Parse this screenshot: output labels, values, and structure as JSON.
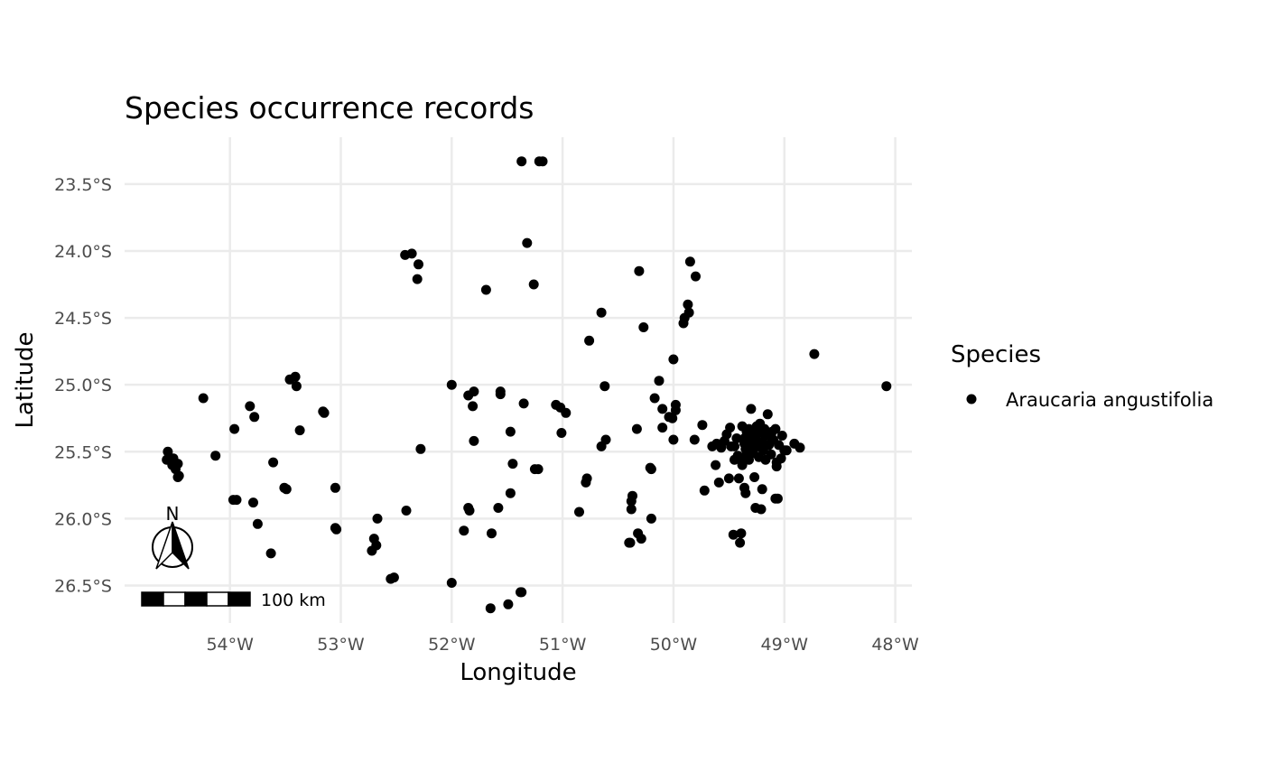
{
  "chart_data": {
    "type": "scatter",
    "title": "Species occurrence records",
    "xlabel": "Longitude",
    "ylabel": "Latitude",
    "xlim": [
      -54.95,
      -47.85
    ],
    "ylim": [
      -26.78,
      -23.15
    ],
    "x_ticks": [
      {
        "value": -54,
        "label": "54°W"
      },
      {
        "value": -53,
        "label": "53°W"
      },
      {
        "value": -52,
        "label": "52°W"
      },
      {
        "value": -51,
        "label": "51°W"
      },
      {
        "value": -50,
        "label": "50°W"
      },
      {
        "value": -49,
        "label": "49°W"
      },
      {
        "value": -48,
        "label": "48°W"
      }
    ],
    "y_ticks": [
      {
        "value": -23.5,
        "label": "23.5°S"
      },
      {
        "value": -24.0,
        "label": "24.0°S"
      },
      {
        "value": -24.5,
        "label": "24.5°S"
      },
      {
        "value": -25.0,
        "label": "25.0°S"
      },
      {
        "value": -25.5,
        "label": "25.5°S"
      },
      {
        "value": -26.0,
        "label": "26.0°S"
      },
      {
        "value": -26.5,
        "label": "26.5°S"
      }
    ],
    "grid": true,
    "legend": {
      "title": "Species",
      "position": "right",
      "entries": [
        "Araucaria angustifolia"
      ]
    },
    "scale_bar_label": "100 km",
    "north_arrow_label": "N",
    "series": [
      {
        "name": "Araucaria angustifolia",
        "color": "#000000",
        "points": [
          [
            -51.37,
            -23.33
          ],
          [
            -51.21,
            -23.33
          ],
          [
            -51.18,
            -23.33
          ],
          [
            -51.32,
            -23.94
          ],
          [
            -52.42,
            -24.03
          ],
          [
            -52.36,
            -24.02
          ],
          [
            -52.3,
            -24.1
          ],
          [
            -52.31,
            -24.21
          ],
          [
            -51.69,
            -24.29
          ],
          [
            -51.26,
            -24.25
          ],
          [
            -50.31,
            -24.15
          ],
          [
            -49.85,
            -24.08
          ],
          [
            -49.8,
            -24.19
          ],
          [
            -50.65,
            -24.46
          ],
          [
            -49.87,
            -24.4
          ],
          [
            -49.86,
            -24.46
          ],
          [
            -49.9,
            -24.5
          ],
          [
            -49.91,
            -24.54
          ],
          [
            -50.27,
            -24.57
          ],
          [
            -50.76,
            -24.67
          ],
          [
            -48.73,
            -24.77
          ],
          [
            -50.0,
            -24.81
          ],
          [
            -54.24,
            -25.1
          ],
          [
            -53.82,
            -25.16
          ],
          [
            -53.78,
            -25.24
          ],
          [
            -53.96,
            -25.33
          ],
          [
            -54.13,
            -25.53
          ],
          [
            -53.46,
            -24.96
          ],
          [
            -53.41,
            -24.94
          ],
          [
            -53.4,
            -25.01
          ],
          [
            -53.16,
            -25.2
          ],
          [
            -53.15,
            -25.21
          ],
          [
            -53.37,
            -25.34
          ],
          [
            -52.0,
            -25.0
          ],
          [
            -51.85,
            -25.08
          ],
          [
            -51.8,
            -25.05
          ],
          [
            -51.81,
            -25.16
          ],
          [
            -51.56,
            -25.05
          ],
          [
            -51.56,
            -25.07
          ],
          [
            -51.35,
            -25.14
          ],
          [
            -51.47,
            -25.35
          ],
          [
            -51.8,
            -25.42
          ],
          [
            -52.28,
            -25.48
          ],
          [
            -50.62,
            -25.01
          ],
          [
            -50.13,
            -24.97
          ],
          [
            -50.17,
            -25.1
          ],
          [
            -50.1,
            -25.18
          ],
          [
            -50.04,
            -25.24
          ],
          [
            -50.01,
            -25.25
          ],
          [
            -49.98,
            -25.19
          ],
          [
            -49.98,
            -25.15
          ],
          [
            -51.06,
            -25.15
          ],
          [
            -51.02,
            -25.17
          ],
          [
            -50.97,
            -25.21
          ],
          [
            -50.1,
            -25.32
          ],
          [
            -50.0,
            -25.41
          ],
          [
            -50.33,
            -25.33
          ],
          [
            -51.01,
            -25.36
          ],
          [
            -50.61,
            -25.41
          ],
          [
            -50.65,
            -25.46
          ],
          [
            -49.81,
            -25.41
          ],
          [
            -49.74,
            -25.3
          ],
          [
            -54.56,
            -25.5
          ],
          [
            -54.57,
            -25.56
          ],
          [
            -54.51,
            -25.55
          ],
          [
            -54.52,
            -25.6
          ],
          [
            -54.47,
            -25.59
          ],
          [
            -54.49,
            -25.63
          ],
          [
            -54.46,
            -25.68
          ],
          [
            -54.47,
            -25.69
          ],
          [
            -53.61,
            -25.58
          ],
          [
            -53.51,
            -25.77
          ],
          [
            -53.49,
            -25.78
          ],
          [
            -53.05,
            -25.77
          ],
          [
            -53.97,
            -25.86
          ],
          [
            -53.94,
            -25.86
          ],
          [
            -53.79,
            -25.88
          ],
          [
            -53.75,
            -26.04
          ],
          [
            -53.05,
            -26.07
          ],
          [
            -53.04,
            -26.08
          ],
          [
            -52.67,
            -26.0
          ],
          [
            -52.7,
            -26.15
          ],
          [
            -52.68,
            -26.2
          ],
          [
            -52.72,
            -26.24
          ],
          [
            -53.63,
            -26.26
          ],
          [
            -52.41,
            -25.94
          ],
          [
            -52.55,
            -26.45
          ],
          [
            -52.52,
            -26.44
          ],
          [
            -51.45,
            -25.59
          ],
          [
            -51.25,
            -25.63
          ],
          [
            -51.22,
            -25.63
          ],
          [
            -51.47,
            -25.81
          ],
          [
            -51.58,
            -25.92
          ],
          [
            -51.85,
            -25.92
          ],
          [
            -51.84,
            -25.94
          ],
          [
            -51.89,
            -26.09
          ],
          [
            -51.64,
            -26.11
          ],
          [
            -52.0,
            -26.48
          ],
          [
            -51.37,
            -26.55
          ],
          [
            -51.38,
            -26.55
          ],
          [
            -51.49,
            -26.64
          ],
          [
            -51.65,
            -26.67
          ],
          [
            -50.78,
            -25.7
          ],
          [
            -50.79,
            -25.73
          ],
          [
            -50.85,
            -25.95
          ],
          [
            -50.37,
            -25.83
          ],
          [
            -50.38,
            -25.87
          ],
          [
            -50.38,
            -25.93
          ],
          [
            -50.21,
            -25.62
          ],
          [
            -50.2,
            -25.63
          ],
          [
            -50.2,
            -26.0
          ],
          [
            -50.32,
            -26.11
          ],
          [
            -50.29,
            -26.15
          ],
          [
            -50.4,
            -26.18
          ],
          [
            -50.39,
            -26.18
          ],
          [
            -49.65,
            -25.46
          ],
          [
            -49.61,
            -25.44
          ],
          [
            -49.57,
            -25.47
          ],
          [
            -49.54,
            -25.42
          ],
          [
            -49.52,
            -25.37
          ],
          [
            -49.49,
            -25.32
          ],
          [
            -49.48,
            -25.46
          ],
          [
            -49.45,
            -25.46
          ],
          [
            -49.43,
            -25.4
          ],
          [
            -49.38,
            -25.31
          ],
          [
            -49.36,
            -25.4
          ],
          [
            -49.36,
            -25.44
          ],
          [
            -49.35,
            -25.48
          ],
          [
            -49.34,
            -25.52
          ],
          [
            -49.33,
            -25.38
          ],
          [
            -49.32,
            -25.33
          ],
          [
            -49.3,
            -25.43
          ],
          [
            -49.3,
            -25.18
          ],
          [
            -49.29,
            -25.47
          ],
          [
            -49.28,
            -25.51
          ],
          [
            -49.27,
            -25.36
          ],
          [
            -49.26,
            -25.4
          ],
          [
            -49.25,
            -25.31
          ],
          [
            -49.24,
            -25.46
          ],
          [
            -49.23,
            -25.54
          ],
          [
            -49.22,
            -25.29
          ],
          [
            -49.21,
            -25.36
          ],
          [
            -49.2,
            -25.43
          ],
          [
            -49.19,
            -25.49
          ],
          [
            -49.18,
            -25.33
          ],
          [
            -49.17,
            -25.56
          ],
          [
            -49.16,
            -25.38
          ],
          [
            -49.15,
            -25.22
          ],
          [
            -49.14,
            -25.45
          ],
          [
            -49.12,
            -25.52
          ],
          [
            -49.11,
            -25.35
          ],
          [
            -49.1,
            -25.41
          ],
          [
            -49.08,
            -25.33
          ],
          [
            -49.07,
            -25.58
          ],
          [
            -49.07,
            -25.61
          ],
          [
            -49.05,
            -25.45
          ],
          [
            -49.03,
            -25.55
          ],
          [
            -49.02,
            -25.38
          ],
          [
            -49.0,
            -25.49
          ],
          [
            -48.98,
            -25.49
          ],
          [
            -48.91,
            -25.44
          ],
          [
            -48.86,
            -25.47
          ],
          [
            -49.38,
            -25.56
          ],
          [
            -49.42,
            -25.53
          ],
          [
            -49.45,
            -25.56
          ],
          [
            -49.32,
            -25.56
          ],
          [
            -49.28,
            -25.47
          ],
          [
            -49.34,
            -25.35
          ],
          [
            -49.62,
            -25.6
          ],
          [
            -49.59,
            -25.73
          ],
          [
            -49.5,
            -25.7
          ],
          [
            -49.41,
            -25.7
          ],
          [
            -49.38,
            -25.6
          ],
          [
            -49.27,
            -25.69
          ],
          [
            -49.36,
            -25.77
          ],
          [
            -49.35,
            -25.81
          ],
          [
            -49.2,
            -25.78
          ],
          [
            -49.08,
            -25.85
          ],
          [
            -49.06,
            -25.85
          ],
          [
            -49.72,
            -25.79
          ],
          [
            -49.26,
            -25.92
          ],
          [
            -49.21,
            -25.93
          ],
          [
            -49.46,
            -26.12
          ],
          [
            -49.39,
            -26.11
          ],
          [
            -49.4,
            -26.18
          ],
          [
            -48.08,
            -25.01
          ]
        ]
      }
    ]
  }
}
